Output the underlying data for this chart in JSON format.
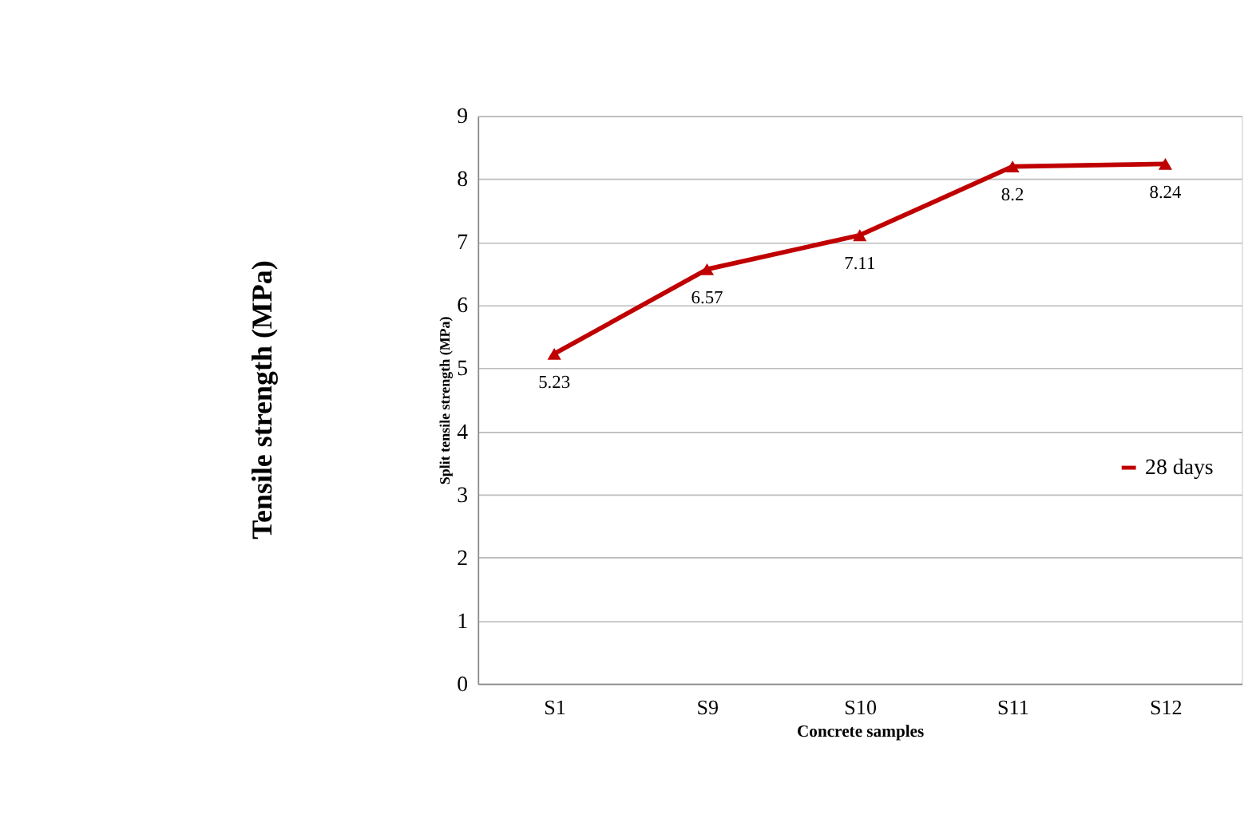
{
  "chart_data": {
    "type": "line",
    "categories": [
      "S1",
      "S9",
      "S10",
      "S11",
      "S12"
    ],
    "series": [
      {
        "name": "28 days",
        "color": "#c00000",
        "values": [
          5.23,
          6.57,
          7.11,
          8.2,
          8.24
        ]
      }
    ],
    "xlabel": "Concrete samples",
    "ylabel": "Split tensile strength (MPa)",
    "annotations": [
      "Tensile strength (MPa)"
    ],
    "ylim": [
      0,
      9
    ],
    "yticks": [
      0,
      1,
      2,
      3,
      4,
      5,
      6,
      7,
      8,
      9
    ],
    "grid": "y",
    "legend": "right",
    "marker": "triangle",
    "line_style": "solid",
    "data_labels": true
  }
}
